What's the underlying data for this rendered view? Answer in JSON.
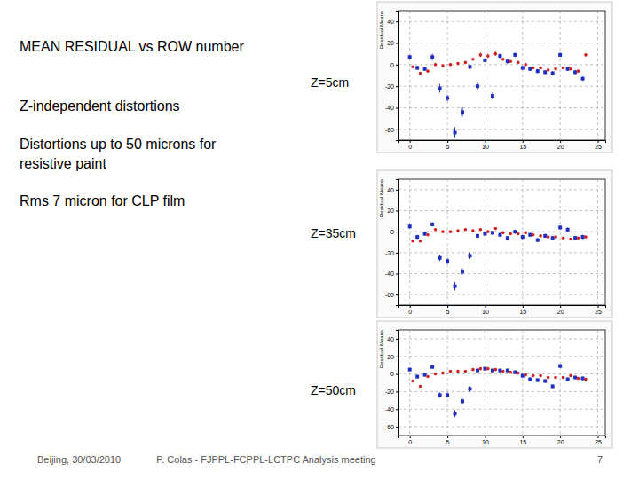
{
  "slide": {
    "title": "MEAN RESIDUAL vs ROW number",
    "notes": [
      "Z-independent distortions",
      "Distortions up to 50 microns for",
      "resistive paint",
      "Rms 7 micron for CLP film"
    ],
    "footer": {
      "date": "Beijing, 30/03/2010",
      "text": "P. Colas  -  FJPPL-FCPPL-LCTPC Analysis meeting",
      "page": 7
    }
  },
  "chart_data": [
    {
      "type": "scatter",
      "title": "Z=5cm",
      "y_label": "Residual Means",
      "xlim": [
        -1.5,
        26
      ],
      "xticks": [
        0,
        5,
        10,
        15,
        20,
        25
      ],
      "ylim": [
        -70,
        50
      ],
      "yticks": [
        -60,
        -40,
        -20,
        0,
        20,
        40
      ],
      "grid": true,
      "series": [
        {
          "color": "#1f2fc0",
          "marker": "square",
          "x": [
            0,
            1,
            2,
            3,
            4,
            5,
            6,
            7,
            8,
            9,
            10,
            11,
            12,
            13,
            14,
            15,
            16,
            17,
            18,
            19,
            20,
            21,
            22,
            23
          ],
          "values": [
            7,
            -3,
            -4,
            7,
            -22,
            -31,
            -63,
            -44,
            -2,
            -20,
            4,
            -29,
            8,
            3,
            9,
            -3,
            -4,
            -6,
            -7,
            -8,
            9,
            -4,
            -7,
            -13
          ],
          "errors": [
            2,
            2,
            2,
            3,
            4,
            3,
            5,
            4,
            2,
            4,
            2,
            3,
            2,
            2,
            2,
            2,
            2,
            2,
            2,
            2,
            2,
            2,
            2,
            2
          ]
        },
        {
          "color": "#d42020",
          "marker": "circle",
          "x": [
            0.4,
            1.4,
            2.4,
            3.4,
            4.4,
            5.4,
            6.4,
            7.4,
            8.4,
            9.4,
            10.4,
            11.4,
            12.4,
            13.4,
            14.4,
            15.4,
            16.4,
            17.4,
            18.4,
            19.4,
            20.4,
            21.4,
            22.4,
            23.4
          ],
          "values": [
            -2,
            -8,
            -6,
            0,
            -1,
            0,
            1,
            2,
            5,
            9,
            8,
            10,
            5,
            3,
            2,
            0,
            -3,
            -3,
            -5,
            -4,
            -3,
            -4,
            -6,
            9
          ],
          "errors": [
            1,
            1,
            1,
            1,
            1,
            1,
            1,
            1,
            1,
            2,
            2,
            2,
            1,
            1,
            1,
            1,
            1,
            1,
            1,
            1,
            1,
            1,
            1,
            1
          ]
        }
      ]
    },
    {
      "type": "scatter",
      "title": "Z=35cm",
      "y_label": "Residual Means",
      "xlim": [
        -1.5,
        26
      ],
      "xticks": [
        0,
        5,
        10,
        15,
        20,
        25
      ],
      "ylim": [
        -70,
        50
      ],
      "yticks": [
        -60,
        -40,
        -20,
        0,
        20,
        40
      ],
      "grid": true,
      "series": [
        {
          "color": "#1f2fc0",
          "marker": "square",
          "x": [
            0,
            1,
            2,
            3,
            4,
            5,
            6,
            7,
            8,
            9,
            10,
            11,
            12,
            13,
            14,
            15,
            16,
            17,
            18,
            19,
            20,
            21,
            22,
            23
          ],
          "values": [
            5,
            -5,
            -2,
            7,
            -25,
            -28,
            -52,
            -38,
            -23,
            -4,
            -2,
            -1,
            -3,
            -6,
            0,
            -5,
            -3,
            -8,
            -4,
            -6,
            4,
            2,
            -6,
            -5
          ],
          "errors": [
            2,
            2,
            2,
            2,
            3,
            3,
            4,
            3,
            3,
            2,
            2,
            2,
            2,
            2,
            2,
            2,
            2,
            2,
            2,
            2,
            2,
            2,
            2,
            2
          ]
        },
        {
          "color": "#d42020",
          "marker": "circle",
          "x": [
            0.4,
            1.4,
            2.4,
            3.4,
            4.4,
            5.4,
            6.4,
            7.4,
            8.4,
            9.4,
            10.4,
            11.4,
            12.4,
            13.4,
            14.4,
            15.4,
            16.4,
            17.4,
            18.4,
            19.4,
            20.4,
            21.4,
            22.4,
            23.4
          ],
          "values": [
            -9,
            -9,
            -3,
            2,
            0,
            0,
            1,
            2,
            1,
            2,
            0,
            3,
            -1,
            -2,
            -2,
            -1,
            -3,
            -4,
            -5,
            -5,
            -6,
            -7,
            -6,
            -5
          ],
          "errors": [
            1,
            1,
            1,
            1,
            1,
            1,
            1,
            1,
            1,
            1,
            1,
            1,
            1,
            1,
            1,
            1,
            1,
            1,
            1,
            1,
            1,
            1,
            1,
            1
          ]
        }
      ]
    },
    {
      "type": "scatter",
      "title": "Z=50cm",
      "y_label": "Residual Means",
      "xlim": [
        -1.5,
        26
      ],
      "xticks": [
        0,
        5,
        10,
        15,
        20,
        25
      ],
      "ylim": [
        -70,
        50
      ],
      "yticks": [
        -60,
        -40,
        -20,
        0,
        20,
        40
      ],
      "grid": true,
      "series": [
        {
          "color": "#1f2fc0",
          "marker": "square",
          "x": [
            0,
            1,
            2,
            3,
            4,
            5,
            6,
            7,
            8,
            9,
            10,
            11,
            12,
            13,
            14,
            15,
            16,
            17,
            18,
            19,
            20,
            21,
            22,
            23
          ],
          "values": [
            5,
            -3,
            -1,
            8,
            -24,
            -24,
            -45,
            -31,
            -17,
            4,
            6,
            4,
            4,
            4,
            2,
            -2,
            -6,
            -7,
            -8,
            -14,
            9,
            -6,
            -4,
            -5
          ],
          "errors": [
            2,
            2,
            2,
            2,
            3,
            3,
            4,
            3,
            3,
            2,
            2,
            2,
            2,
            2,
            2,
            2,
            2,
            2,
            2,
            2,
            2,
            2,
            2,
            2
          ]
        },
        {
          "color": "#d42020",
          "marker": "circle",
          "x": [
            0.4,
            1.4,
            2.4,
            3.4,
            4.4,
            5.4,
            6.4,
            7.4,
            8.4,
            9.4,
            10.4,
            11.4,
            12.4,
            13.4,
            14.4,
            15.4,
            16.4,
            17.4,
            18.4,
            19.4,
            20.4,
            21.4,
            22.4,
            23.4
          ],
          "values": [
            -8,
            -14,
            -3,
            0,
            1,
            3,
            3,
            3,
            5,
            6,
            6,
            5,
            3,
            2,
            1,
            -1,
            -2,
            -2,
            -4,
            -4,
            -4,
            -2,
            -5,
            -6
          ],
          "errors": [
            1,
            1,
            1,
            1,
            1,
            1,
            1,
            1,
            1,
            1,
            1,
            1,
            1,
            1,
            1,
            1,
            1,
            1,
            1,
            1,
            1,
            1,
            1,
            1
          ]
        }
      ]
    }
  ]
}
